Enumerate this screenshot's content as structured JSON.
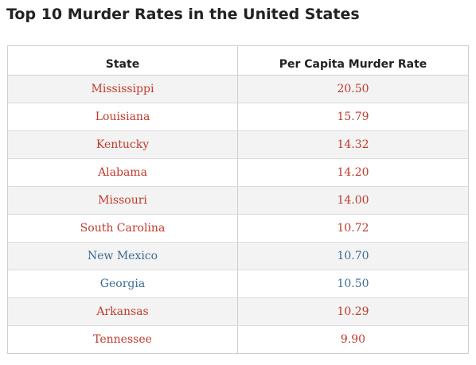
{
  "title": "Top 10 Murder Rates in the United States",
  "table": {
    "headers": {
      "state": "State",
      "rate": "Per Capita Murder Rate"
    },
    "colors": {
      "red": "#c0392b",
      "blue": "#3d6a94"
    },
    "rows": [
      {
        "state": "Mississippi",
        "rate": "20.50",
        "color": "#c0392b"
      },
      {
        "state": "Louisiana",
        "rate": "15.79",
        "color": "#c0392b"
      },
      {
        "state": "Kentucky",
        "rate": "14.32",
        "color": "#c0392b"
      },
      {
        "state": "Alabama",
        "rate": "14.20",
        "color": "#c0392b"
      },
      {
        "state": "Missouri",
        "rate": "14.00",
        "color": "#c0392b"
      },
      {
        "state": "South Carolina",
        "rate": "10.72",
        "color": "#c0392b"
      },
      {
        "state": "New Mexico",
        "rate": "10.70",
        "color": "#3d6a94"
      },
      {
        "state": "Georgia",
        "rate": "10.50",
        "color": "#3d6a94"
      },
      {
        "state": "Arkansas",
        "rate": "10.29",
        "color": "#c0392b"
      },
      {
        "state": "Tennessee",
        "rate": "9.90",
        "color": "#c0392b"
      }
    ]
  }
}
